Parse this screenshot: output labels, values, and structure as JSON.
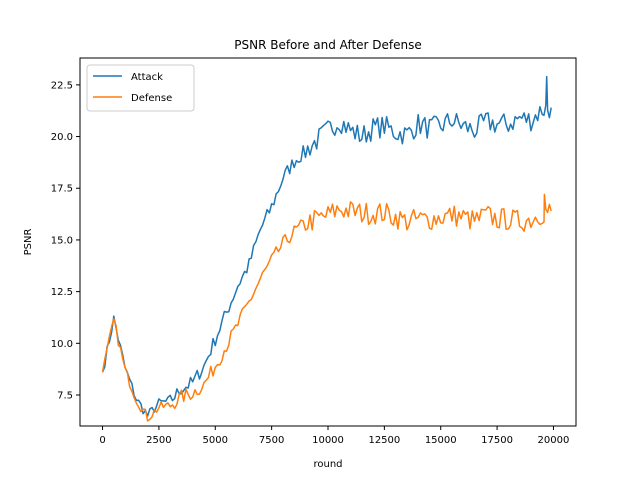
{
  "chart_data": {
    "type": "line",
    "title": "PSNR Before and After Defense",
    "xlabel": "round",
    "ylabel": "PSNR",
    "xlim": [
      -1000,
      21000
    ],
    "ylim": [
      6.0,
      23.8
    ],
    "grid": false,
    "legend_position": "top-left",
    "xticks": [
      0,
      2500,
      5000,
      7500,
      10000,
      12500,
      15000,
      17500,
      20000
    ],
    "xtick_labels": [
      "0",
      "2500",
      "5000",
      "7500",
      "10000",
      "12500",
      "15000",
      "17500",
      "20000"
    ],
    "yticks": [
      7.5,
      10.0,
      12.5,
      15.0,
      17.5,
      20.0,
      22.5
    ],
    "ytick_labels": [
      "7.5",
      "10.0",
      "12.5",
      "15.0",
      "17.5",
      "20.0",
      "22.5"
    ],
    "x": [
      0,
      500,
      1000,
      1500,
      2000,
      2500,
      3000,
      3500,
      4000,
      4500,
      5000,
      5500,
      6000,
      6500,
      7000,
      7500,
      8000,
      8500,
      9000,
      9500,
      10000,
      10500,
      11000,
      11500,
      12000,
      12500,
      13000,
      13500,
      14000,
      14500,
      15000,
      15500,
      16000,
      16500,
      17000,
      17500,
      18000,
      18500,
      19000,
      19500,
      19900
    ],
    "series": [
      {
        "name": "Attack",
        "color": "#1f77b4",
        "values": [
          8.6,
          11.2,
          8.8,
          7.3,
          6.5,
          7.1,
          7.2,
          7.8,
          8.1,
          8.9,
          10.2,
          11.5,
          12.8,
          13.8,
          15.5,
          16.6,
          18.0,
          18.8,
          19.3,
          19.8,
          20.3,
          20.8,
          20.3,
          20.0,
          20.4,
          20.5,
          20.2,
          20.1,
          20.6,
          20.4,
          20.5,
          20.8,
          20.5,
          20.3,
          20.7,
          20.6,
          20.6,
          20.9,
          20.8,
          21.3,
          21.4
        ]
      },
      {
        "name": "Defense",
        "color": "#ff7f0e",
        "values": [
          8.6,
          11.1,
          8.7,
          7.3,
          6.4,
          6.9,
          7.0,
          7.4,
          7.6,
          8.0,
          8.9,
          9.9,
          10.9,
          12.0,
          13.1,
          14.0,
          14.8,
          15.4,
          15.8,
          16.0,
          16.2,
          16.5,
          16.4,
          16.3,
          16.3,
          16.3,
          16.1,
          15.9,
          16.0,
          16.0,
          16.1,
          16.2,
          16.1,
          15.9,
          16.2,
          16.0,
          16.0,
          15.9,
          16.0,
          16.3,
          16.4
        ]
      }
    ],
    "series_peaks": {
      "Attack": {
        "x": 19700,
        "y": 22.9
      },
      "Defense": {
        "x": 19600,
        "y": 17.2
      }
    }
  }
}
